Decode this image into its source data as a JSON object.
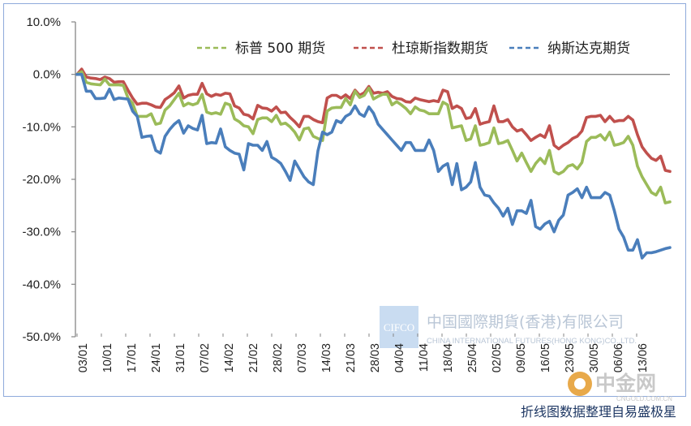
{
  "chart_data": {
    "type": "line",
    "y_ticks": [
      "10.0%",
      "0.0%",
      "-10.0%",
      "-20.0%",
      "-30.0%",
      "-40.0%",
      "-50.0%"
    ],
    "ylim": [
      -50,
      10
    ],
    "x_ticks": [
      "03/01",
      "10/01",
      "17/01",
      "24/01",
      "31/01",
      "07/02",
      "14/02",
      "21/02",
      "28/02",
      "07/03",
      "14/03",
      "21/03",
      "28/03",
      "04/04",
      "11/04",
      "18/04",
      "25/04",
      "02/05",
      "09/05",
      "16/05",
      "23/05",
      "30/05",
      "06/06",
      "13/06"
    ],
    "legend_position": "top-right",
    "legend_style": "dashed",
    "grid": false,
    "series": [
      {
        "name": "标普 500 期货",
        "color": "#9bbb59",
        "values": [
          0,
          0.5,
          -1.5,
          -1.8,
          -1.9,
          -2.0,
          -0.9,
          -2.0,
          -2.0,
          -2.0,
          -2.1,
          -4.5,
          -5.5,
          -8.0,
          -8.0,
          -8.0,
          -7.5,
          -9.5,
          -9.3,
          -6.8,
          -6.0,
          -4.8,
          -3.6,
          -6.0,
          -5.5,
          -5.8,
          -5.5,
          -3.8,
          -7.2,
          -7.5,
          -7.3,
          -7.6,
          -5.5,
          -5.8,
          -8.5,
          -9.0,
          -9.8,
          -10.0,
          -11.3,
          -8.6,
          -8.3,
          -8.3,
          -9.0,
          -7.8,
          -9.5,
          -9.3,
          -10.0,
          -11.0,
          -12.5,
          -10.4,
          -10.2,
          -11.8,
          -12.2,
          -12.6,
          -7.0,
          -6.4,
          -6.3,
          -6.3,
          -4.6,
          -5.8,
          -3.2,
          -4.4,
          -4.0,
          -2.6,
          -4.7,
          -4.2,
          -3.8,
          -3.8,
          -5.8,
          -5.2,
          -5.8,
          -6.5,
          -7.5,
          -6.2,
          -6.8,
          -7.0,
          -7.5,
          -7.5,
          -7.5,
          -5.3,
          -5.8,
          -10.2,
          -10.0,
          -9.8,
          -12.6,
          -12.3,
          -9.8,
          -13.5,
          -13.3,
          -13.0,
          -10.2,
          -13.2,
          -13.0,
          -12.6,
          -14.5,
          -16.5,
          -15.0,
          -16.8,
          -18.5,
          -17.0,
          -16.0,
          -17.0,
          -14.5,
          -18.5,
          -19.0,
          -18.5,
          -17.5,
          -17.2,
          -18.0,
          -16.8,
          -12.8,
          -12.0,
          -12.0,
          -11.5,
          -12.5,
          -11.0,
          -13.5,
          -13.3,
          -13.0,
          -11.8,
          -13.5,
          -17.5,
          -19.5,
          -21.0,
          -22.5,
          -23.0,
          -21.5,
          -24.5,
          -24.3
        ]
      },
      {
        "name": "杜琼斯指数期货",
        "color": "#c0504d",
        "values": [
          0,
          1.0,
          -0.5,
          -0.7,
          -0.8,
          -1.0,
          -0.5,
          -0.8,
          -1.5,
          -1.4,
          -1.4,
          -3.0,
          -4.5,
          -5.7,
          -5.5,
          -5.5,
          -5.8,
          -6.2,
          -6.3,
          -4.8,
          -4.2,
          -3.5,
          -2.2,
          -4.5,
          -4.0,
          -3.8,
          -3.8,
          -1.7,
          -3.7,
          -4.2,
          -3.8,
          -4.0,
          -3.6,
          -3.7,
          -6.0,
          -6.4,
          -7.6,
          -7.8,
          -8.5,
          -5.9,
          -6.4,
          -6.5,
          -7.0,
          -6.2,
          -7.3,
          -7.2,
          -8.2,
          -9.0,
          -10.0,
          -8.0,
          -8.0,
          -8.6,
          -9.0,
          -9.2,
          -4.5,
          -4.0,
          -4.0,
          -4.5,
          -3.9,
          -4.6,
          -3.0,
          -4.0,
          -3.5,
          -2.3,
          -3.6,
          -3.4,
          -3.6,
          -3.3,
          -4.2,
          -4.6,
          -4.7,
          -5.2,
          -5.3,
          -4.5,
          -4.8,
          -5.0,
          -5.2,
          -5.0,
          -5.2,
          -3.0,
          -3.3,
          -6.5,
          -6.0,
          -6.5,
          -8.4,
          -8.2,
          -6.5,
          -9.5,
          -9.2,
          -9.0,
          -6.0,
          -9.0,
          -9.0,
          -8.6,
          -10.0,
          -10.8,
          -10.5,
          -11.5,
          -12.6,
          -12.0,
          -11.5,
          -12.0,
          -9.8,
          -13.5,
          -14.2,
          -13.5,
          -13.0,
          -12.2,
          -11.8,
          -10.8,
          -8.2,
          -8.0,
          -8.0,
          -7.8,
          -9.0,
          -8.0,
          -9.0,
          -8.8,
          -8.8,
          -8.0,
          -8.7,
          -11.5,
          -13.8,
          -15.0,
          -16.0,
          -16.4,
          -15.6,
          -18.3,
          -18.5
        ]
      },
      {
        "name": "纳斯达克期货",
        "color": "#4a7ebb",
        "values": [
          0,
          0,
          -3.2,
          -3.2,
          -4.6,
          -4.6,
          -4.5,
          -2.8,
          -4.8,
          -4.5,
          -4.6,
          -4.7,
          -7.0,
          -8.0,
          -12.0,
          -11.8,
          -11.7,
          -14.5,
          -15.0,
          -11.8,
          -10.5,
          -9.5,
          -8.8,
          -11.2,
          -9.8,
          -10.3,
          -10.6,
          -7.8,
          -13.2,
          -13.0,
          -13.1,
          -10.4,
          -13.8,
          -14.5,
          -15.0,
          -15.2,
          -18.2,
          -13.2,
          -13.5,
          -13.5,
          -14.5,
          -12.8,
          -15.8,
          -16.3,
          -17.0,
          -18.5,
          -20.2,
          -16.5,
          -18.0,
          -19.5,
          -20.5,
          -21.0,
          -14.6,
          -11.0,
          -11.5,
          -11.0,
          -8.8,
          -9.2,
          -8.0,
          -7.5,
          -6.0,
          -7.5,
          -8.0,
          -6.2,
          -7.4,
          -9.5,
          -10.5,
          -11.5,
          -12.5,
          -13.5,
          -14.5,
          -13.0,
          -13.0,
          -14.5,
          -14.5,
          -14.5,
          -12.5,
          -14.5,
          -18.5,
          -17.5,
          -17.0,
          -21.0,
          -17.0,
          -22.0,
          -21.5,
          -20.5,
          -16.8,
          -21.5,
          -23.0,
          -23.2,
          -24.5,
          -25.5,
          -27.0,
          -25.5,
          -28.6,
          -26.0,
          -26.0,
          -26.5,
          -24.0,
          -29.0,
          -29.5,
          -28.5,
          -28.0,
          -30.0,
          -27.8,
          -26.8,
          -23.0,
          -22.5,
          -21.8,
          -23.5,
          -21.5,
          -23.5,
          -23.5,
          -23.5,
          -22.5,
          -23.0,
          -26.0,
          -29.5,
          -31.0,
          -33.5,
          -33.5,
          -31.5,
          -35.0,
          -34.0,
          -34.0,
          -33.8,
          -33.5,
          -33.2,
          -33.0
        ]
      }
    ]
  },
  "watermark": {
    "logo_text": "CIFCO",
    "company_cn": "中国國際期貨(香港)有限公司",
    "company_en": "CHINA INTERNATIONAL FUTURES(HONG KONG)CO.,LTD.",
    "site_cn": "中金网",
    "site_en": "CNGOLD.COM.CN"
  },
  "credit": "折线图数据整理自易盛极星"
}
